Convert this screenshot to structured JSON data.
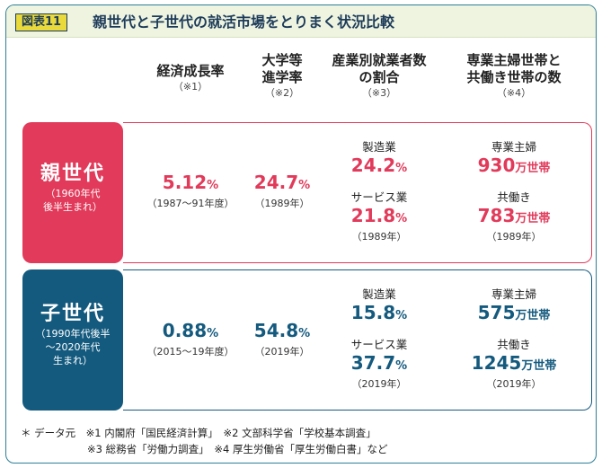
{
  "header": {
    "badge": "図表11",
    "title": "親世代と子世代の就活市場をとりまく状況比較"
  },
  "columns": [
    {
      "lines": [
        "経済成長率"
      ],
      "note": "（※1）"
    },
    {
      "lines": [
        "大学等",
        "進学率"
      ],
      "note": "（※2）"
    },
    {
      "lines": [
        "産業別就業者数",
        "の割合"
      ],
      "note": "（※3）"
    },
    {
      "lines": [
        "専業主婦世帯と",
        "共働き世帯の数"
      ],
      "note": "（※4）"
    }
  ],
  "parent": {
    "label": "親世代",
    "sub": [
      "（1960年代",
      "後半生まれ）"
    ],
    "growth": {
      "value": "5.12",
      "unit": "%",
      "period": "（1987〜91年度）"
    },
    "college": {
      "value": "24.7",
      "unit": "%",
      "year": "（1989年）"
    },
    "industry": {
      "manufacturing_label": "製造業",
      "manufacturing_value": "24.2",
      "manufacturing_unit": "%",
      "service_label": "サービス業",
      "service_value": "21.8",
      "service_unit": "%",
      "year": "（1989年）"
    },
    "households": {
      "housewife_label": "専業主婦",
      "housewife_value": "930",
      "housewife_unit": "万世帯",
      "dual_label": "共働き",
      "dual_value": "783",
      "dual_unit": "万世帯",
      "year": "（1989年）"
    }
  },
  "child": {
    "label": "子世代",
    "sub": [
      "（1990年代後半",
      "〜2020年代",
      "生まれ）"
    ],
    "growth": {
      "value": "0.88",
      "unit": "%",
      "period": "（2015〜19年度）"
    },
    "college": {
      "value": "54.8",
      "unit": "%",
      "year": "（2019年）"
    },
    "industry": {
      "manufacturing_label": "製造業",
      "manufacturing_value": "15.8",
      "manufacturing_unit": "%",
      "service_label": "サービス業",
      "service_value": "37.7",
      "service_unit": "%",
      "year": "（2019年）"
    },
    "households": {
      "housewife_label": "専業主婦",
      "housewife_value": "575",
      "housewife_unit": "万世帯",
      "dual_label": "共働き",
      "dual_value": "1245",
      "dual_unit": "万世帯",
      "year": "（2019年）"
    }
  },
  "footer": {
    "line1": "＊ データ元　※1 内閣府「国民経済計算」　※2 文部科学省「学校基本調査」",
    "line2": "※3 総務省「労働力調査」　※4 厚生労働省「厚生労働白書」など"
  },
  "colors": {
    "parent": "#e13a5a",
    "child": "#145a7e",
    "accent": "#e9d93a",
    "frame": "#2e7f98"
  }
}
